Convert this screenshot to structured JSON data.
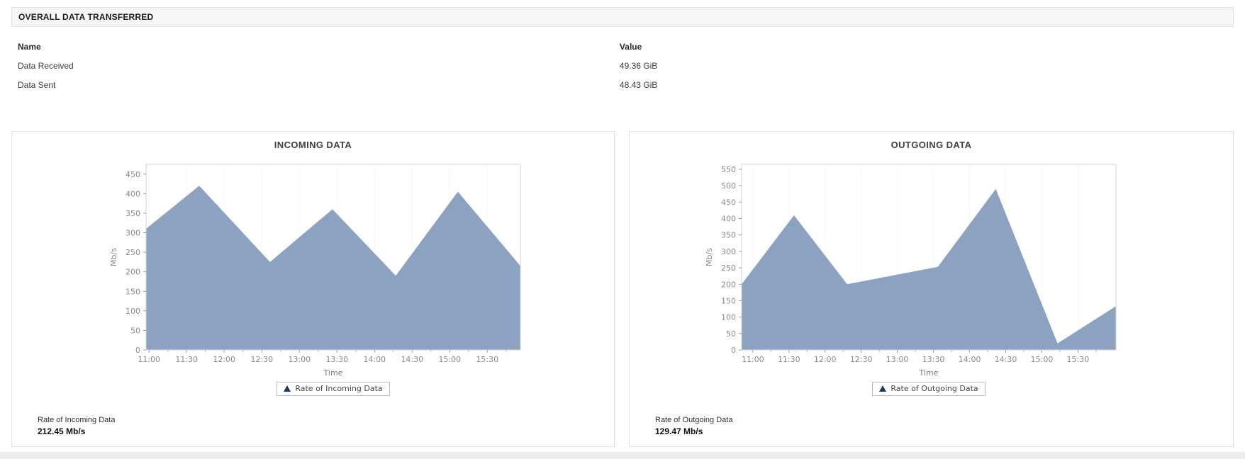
{
  "overall": {
    "title": "OVERALL DATA TRANSFERRED",
    "columns": [
      "Name",
      "Value"
    ],
    "rows": [
      {
        "name": "Data Received",
        "value": "49.36 GiB"
      },
      {
        "name": "Data Sent",
        "value": "48.43 GiB"
      }
    ]
  },
  "colors": {
    "area_fill": "#8BA2C1",
    "legend_marker": "#1D3A66",
    "plot_border": "#D6D6D6",
    "axis_text": "#8A8A8A",
    "header_bar_bg": "#F6F6F6"
  },
  "chart_data": [
    {
      "type": "area",
      "title": "INCOMING DATA",
      "xlabel": "Time",
      "ylabel": "Mb/s",
      "legend_label": "Rate of Incoming Data",
      "x_ticks": [
        "11:00",
        "11:30",
        "12:00",
        "12:30",
        "13:00",
        "13:30",
        "14:00",
        "14:30",
        "15:00",
        "15:30"
      ],
      "x_tick_layout": {
        "start_frac": 0.008,
        "step_frac": 0.1004
      },
      "y_ticks": [
        0,
        50,
        100,
        150,
        200,
        250,
        300,
        350,
        400,
        450
      ],
      "ylim": [
        0,
        475
      ],
      "grid": "faint-vertical",
      "legend_position": "bottom-center",
      "series": [
        {
          "name": "Rate of Incoming Data",
          "points": [
            {
              "time": "10:55",
              "value": 310,
              "frac": 0.0
            },
            {
              "time": "11:40",
              "value": 420,
              "frac": 0.142
            },
            {
              "time": "12:35",
              "value": 225,
              "frac": 0.331
            },
            {
              "time": "13:25",
              "value": 360,
              "frac": 0.498
            },
            {
              "time": "14:10",
              "value": 190,
              "frac": 0.667
            },
            {
              "time": "15:05",
              "value": 405,
              "frac": 0.833
            },
            {
              "time": "15:55",
              "value": 215,
              "frac": 1.0
            }
          ]
        }
      ],
      "footer": {
        "label": "Rate of Incoming Data",
        "value": "212.45 Mb/s"
      }
    },
    {
      "type": "area",
      "title": "OUTGOING DATA",
      "xlabel": "Time",
      "ylabel": "Mb/s",
      "legend_label": "Rate of Outgoing Data",
      "x_ticks": [
        "11:00",
        "11:30",
        "12:00",
        "12:30",
        "13:00",
        "13:30",
        "14:00",
        "14:30",
        "15:00",
        "15:30"
      ],
      "x_tick_layout": {
        "start_frac": 0.03,
        "step_frac": 0.0965
      },
      "y_ticks": [
        0,
        50,
        100,
        150,
        200,
        250,
        300,
        350,
        400,
        450,
        500,
        550
      ],
      "ylim": [
        0,
        565
      ],
      "grid": "faint-vertical",
      "legend_position": "bottom-center",
      "series": [
        {
          "name": "Rate of Outgoing Data",
          "points": [
            {
              "time": "10:55",
              "value": 200,
              "frac": 0.0
            },
            {
              "time": "11:40",
              "value": 410,
              "frac": 0.14
            },
            {
              "time": "12:25",
              "value": 200,
              "frac": 0.282
            },
            {
              "time": "13:25",
              "value": 253,
              "frac": 0.524
            },
            {
              "time": "14:10",
              "value": 490,
              "frac": 0.679
            },
            {
              "time": "15:05",
              "value": 20,
              "frac": 0.844
            },
            {
              "time": "15:50",
              "value": 133,
              "frac": 1.0
            }
          ]
        }
      ],
      "footer": {
        "label": "Rate of Outgoing Data",
        "value": "129.47 Mb/s"
      }
    }
  ]
}
